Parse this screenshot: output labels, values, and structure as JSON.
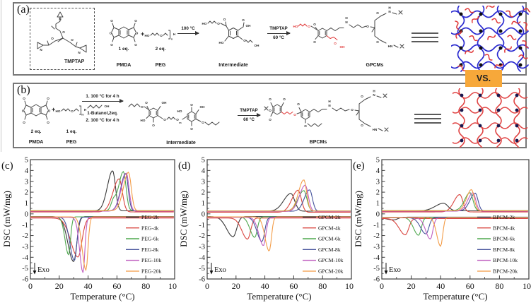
{
  "vs_label": "VS.",
  "vs_box_color": "#f7a83a",
  "atoms": {
    "ho": "HO",
    "oh": "OH",
    "o": "O",
    "n": "N",
    "h": "H",
    "hn": "HN",
    "sub_n": "n",
    "sub_m": "m"
  },
  "panels": {
    "a": {
      "label": "(a)",
      "tmptap_label": "TMPTAP",
      "pmda_eq": "1 eq.",
      "pmda_label": "PMDA",
      "plus": "+",
      "peg_eq": "2 eq.",
      "peg_label": "PEG",
      "step1_condition": "100 °C",
      "intermediate_label": "Intermediate",
      "step2_reagent": "TMPTAP",
      "step2_condition": "60 °C",
      "product_label": "GPCMs"
    },
    "b": {
      "label": "(b)",
      "pmda_eq": "2 eq.",
      "pmda_label": "PMDA",
      "plus": "+",
      "peg_eq": "1 eq.",
      "peg_label": "PEG",
      "step1_line1": "1. 100 °C for 4 h",
      "butanol_oh": "OH",
      "step1_line2": "1-Butanol,2eq.",
      "step1_line3": "2. 100 °C for 4 h",
      "intermediate_label": "Intermediate",
      "step2_reagent": "TMPTAP",
      "step2_condition": "60 °C",
      "product_label": "BPCMs"
    }
  },
  "networks": {
    "gpcm": {
      "chain_color": "#2b2bd0",
      "dot_color": "#101010",
      "squiggle_color": "#e03535"
    },
    "bpcm": {
      "chain_color": "#e04343",
      "dot_color": "#17174e"
    }
  },
  "chart_data": [
    {
      "panel": "(c)",
      "type": "line",
      "xlabel": "Temperature (°C)",
      "ylabel": "DSC (mW/mg)",
      "xlim": [
        0,
        100
      ],
      "ylim": [
        -6,
        5
      ],
      "xticks": [
        0,
        20,
        40,
        60,
        80,
        100
      ],
      "grid": false,
      "legend_position": "lower right",
      "exo_annotation": "Exo",
      "baseline_heating_mW_mg": 0.25,
      "baseline_cooling_mW_mg": -0.3,
      "series": [
        {
          "name": "PEG-2k",
          "color": "#3a3a3a",
          "melting_peak_C": 57,
          "melting_peak_mW_mg": 3.95,
          "melting_sigma_C": 2.6,
          "crystallization_peak_C": 30,
          "crystallization_peak_mW_mg": -4.45,
          "crystallization_sigma_C": 3.0
        },
        {
          "name": "PEG-4k",
          "color": "#d9453f",
          "melting_peak_C": 61.5,
          "melting_peak_mW_mg": 3.3,
          "melting_sigma_C": 3.0,
          "crystallization_peak_C": 33,
          "crystallization_peak_mW_mg": -3.9,
          "crystallization_sigma_C": 3.8
        },
        {
          "name": "PEG-6k",
          "color": "#4fa84f",
          "melting_peak_C": 64.5,
          "melting_peak_mW_mg": 3.85,
          "melting_sigma_C": 2.4,
          "melting_shoulder_C": 57.5,
          "melting_shoulder_mW_mg": 1.1,
          "crystallization_peak_C": 26.5,
          "crystallization_peak_mW_mg": -3.8,
          "crystallization_sigma_C": 1.9
        },
        {
          "name": "PEG-8k",
          "color": "#46549c",
          "melting_peak_C": 66,
          "melting_peak_mW_mg": 3.7,
          "melting_sigma_C": 2.4,
          "crystallization_peak_C": 30.5,
          "crystallization_peak_mW_mg": -4.3,
          "crystallization_sigma_C": 2.4
        },
        {
          "name": "PEG-10k",
          "color": "#c05fc0",
          "melting_peak_C": 66.5,
          "melting_peak_mW_mg": 3.75,
          "melting_sigma_C": 2.5,
          "crystallization_peak_C": 36.5,
          "crystallization_peak_mW_mg": -5.4,
          "crystallization_sigma_C": 1.8
        },
        {
          "name": "PEG-20k",
          "color": "#f39c47",
          "melting_peak_C": 68,
          "melting_peak_mW_mg": 3.8,
          "melting_sigma_C": 2.5,
          "crystallization_peak_C": 38.5,
          "crystallization_peak_mW_mg": -5.2,
          "crystallization_sigma_C": 2.0
        }
      ]
    },
    {
      "panel": "(d)",
      "type": "line",
      "xlabel": "Temperature (°C)",
      "ylabel": "DSC (mW/mg)",
      "xlim": [
        0,
        100
      ],
      "ylim": [
        -6,
        5
      ],
      "xticks": [
        0,
        20,
        40,
        60,
        80,
        100
      ],
      "grid": false,
      "legend_position": "lower right",
      "exo_annotation": "Exo",
      "baseline_heating_mW_mg": 0.22,
      "baseline_cooling_mW_mg": -0.3,
      "series": [
        {
          "name": "GPCM-2k",
          "color": "#3a3a3a",
          "melting_peak_C": 58,
          "melting_peak_mW_mg": 1.85,
          "melting_sigma_C": 3.5,
          "crystallization_peak_C": 18,
          "crystallization_peak_mW_mg": -2.15,
          "crystallization_sigma_C": 3.5
        },
        {
          "name": "GPCM-4k",
          "color": "#d9453f",
          "melting_peak_C": 63,
          "melting_peak_mW_mg": 2.25,
          "melting_sigma_C": 3.0,
          "crystallization_peak_C": 28,
          "crystallization_peak_mW_mg": -2.25,
          "crystallization_sigma_C": 3.0
        },
        {
          "name": "GPCM-6k",
          "color": "#4fa84f",
          "melting_peak_C": 67,
          "melting_peak_mW_mg": 2.1,
          "melting_sigma_C": 2.8,
          "crystallization_peak_C": 33,
          "crystallization_peak_mW_mg": -2.2,
          "crystallization_sigma_C": 2.5
        },
        {
          "name": "GPCM-8k",
          "color": "#46549c",
          "melting_peak_C": 71,
          "melting_peak_mW_mg": 2.2,
          "melting_sigma_C": 2.6,
          "crystallization_peak_C": 38,
          "crystallization_peak_mW_mg": -2.55,
          "crystallization_sigma_C": 2.6
        },
        {
          "name": "GPCM-10k",
          "color": "#c05fc0",
          "melting_peak_C": 68,
          "melting_peak_mW_mg": 2.65,
          "melting_sigma_C": 2.8,
          "crystallization_peak_C": 39,
          "crystallization_peak_mW_mg": -2.9,
          "crystallization_sigma_C": 2.4
        },
        {
          "name": "GPCM-20k",
          "color": "#f39c47",
          "melting_peak_C": 67,
          "melting_peak_mW_mg": 3.1,
          "melting_sigma_C": 2.6,
          "crystallization_peak_C": 43,
          "crystallization_peak_mW_mg": -3.45,
          "crystallization_sigma_C": 2.2
        }
      ]
    },
    {
      "panel": "(e)",
      "type": "line",
      "xlabel": "Temperature (°C)",
      "ylabel": "DSC (mW/mg)",
      "xlim": [
        0,
        100
      ],
      "ylim": [
        -6,
        5
      ],
      "xticks": [
        0,
        20,
        40,
        60,
        80,
        100
      ],
      "grid": false,
      "legend_position": "lower right",
      "exo_annotation": "Exo",
      "baseline_heating_mW_mg": 0.25,
      "baseline_cooling_mW_mg": -0.35,
      "series": [
        {
          "name": "BPCM-2k",
          "color": "#3a3a3a",
          "melting_peak_C": 42,
          "melting_peak_mW_mg": 0.95,
          "melting_sigma_C": 4.0,
          "crystallization_peak_C": 8,
          "crystallization_peak_mW_mg": -0.6,
          "crystallization_sigma_C": 4.0
        },
        {
          "name": "BPCM-4k",
          "color": "#d9453f",
          "melting_peak_C": 53,
          "melting_peak_mW_mg": 1.85,
          "melting_sigma_C": 2.8,
          "crystallization_peak_C": 16,
          "crystallization_peak_mW_mg": -1.85,
          "crystallization_sigma_C": 3.2
        },
        {
          "name": "BPCM-6k",
          "color": "#4fa84f",
          "melting_peak_C": 60,
          "melting_peak_mW_mg": 1.9,
          "melting_sigma_C": 2.6,
          "crystallization_peak_C": 25,
          "crystallization_peak_mW_mg": -2.0,
          "crystallization_sigma_C": 2.6
        },
        {
          "name": "BPCM-8k",
          "color": "#46549c",
          "melting_peak_C": 63.5,
          "melting_peak_mW_mg": 1.9,
          "melting_sigma_C": 2.5,
          "crystallization_peak_C": 30,
          "crystallization_peak_mW_mg": -1.85,
          "crystallization_sigma_C": 2.8
        },
        {
          "name": "BPCM-10k",
          "color": "#c05fc0",
          "melting_peak_C": 62,
          "melting_peak_mW_mg": 1.95,
          "melting_sigma_C": 2.5,
          "crystallization_peak_C": 33,
          "crystallization_peak_mW_mg": -2.3,
          "crystallization_sigma_C": 2.4
        },
        {
          "name": "BPCM-20k",
          "color": "#f39c47",
          "melting_peak_C": 61,
          "melting_peak_mW_mg": 2.2,
          "melting_sigma_C": 2.4,
          "crystallization_peak_C": 40,
          "crystallization_peak_mW_mg": -3.0,
          "crystallization_sigma_C": 2.0
        }
      ]
    }
  ]
}
